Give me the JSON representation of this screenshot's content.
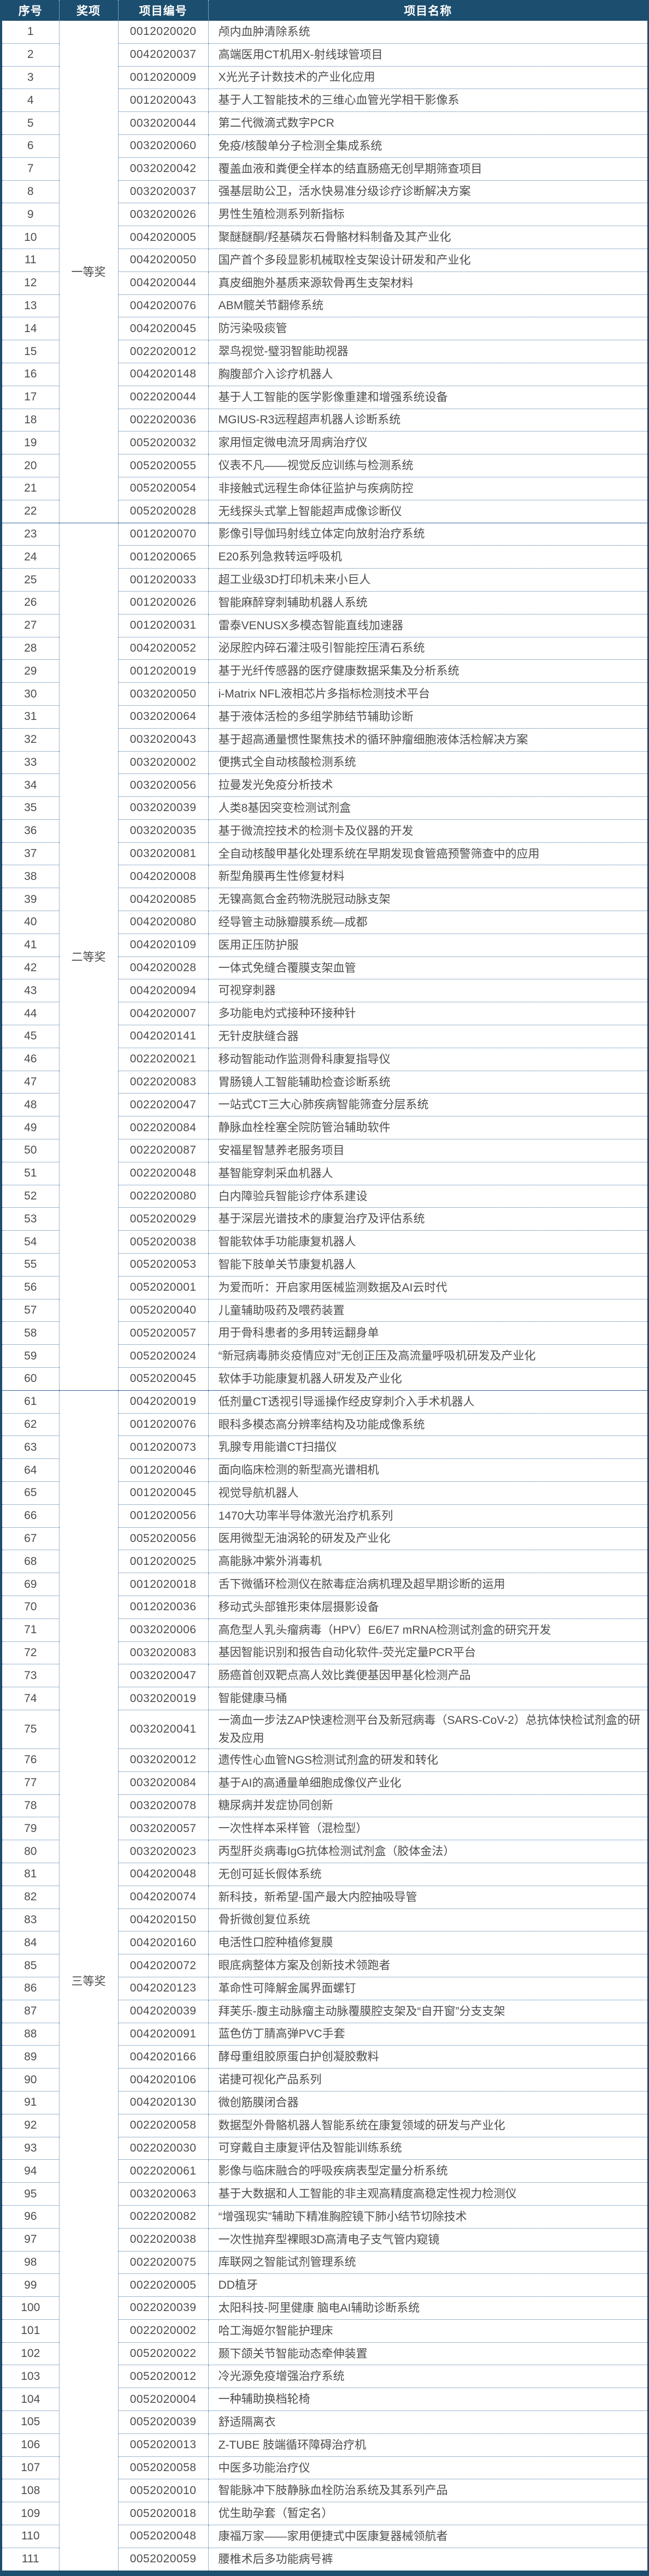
{
  "colors": {
    "header_bg": "#1c4e6f",
    "solid_border": "#1c4e6f",
    "section_line": "#2f6699",
    "dotted_border": "#3a6fa0",
    "body_text": "#4d4d4d",
    "header_text": "#ffffff"
  },
  "table": {
    "columns": [
      "序号",
      "奖项",
      "项目编号",
      "项目名称"
    ],
    "sections": [
      {
        "award": "一等奖",
        "rows": [
          {
            "no": 1,
            "code": "0012020020",
            "name": "颅内血肿清除系统"
          },
          {
            "no": 2,
            "code": "0042020037",
            "name": "高端医用CT机用X-射线球管项目"
          },
          {
            "no": 3,
            "code": "0012020009",
            "name": "X光光子计数技术的产业化应用"
          },
          {
            "no": 4,
            "code": "0012020043",
            "name": "基于人工智能技术的三维心血管光学相干影像系"
          },
          {
            "no": 5,
            "code": "0032020044",
            "name": "第二代微滴式数字PCR"
          },
          {
            "no": 6,
            "code": "0032020060",
            "name": "免疫/核酸单分子检测全集成系统"
          },
          {
            "no": 7,
            "code": "0032020042",
            "name": "覆盖血液和粪便全样本的结直肠癌无创早期筛查项目"
          },
          {
            "no": 8,
            "code": "0032020037",
            "name": "强基层助公卫，活水快易准分级诊疗诊断解决方案"
          },
          {
            "no": 9,
            "code": "0032020026",
            "name": "男性生殖检测系列新指标"
          },
          {
            "no": 10,
            "code": "0042020005",
            "name": "聚醚醚酮/羟基磷灰石骨骼材料制备及其产业化"
          },
          {
            "no": 11,
            "code": "0042020050",
            "name": "国产首个多段显影机械取栓支架设计研发和产业化"
          },
          {
            "no": 12,
            "code": "0042020044",
            "name": "真皮细胞外基质来源软骨再生支架材料"
          },
          {
            "no": 13,
            "code": "0042020076",
            "name": "ABM髋关节翻修系统"
          },
          {
            "no": 14,
            "code": "0042020045",
            "name": "防污染吸痰管"
          },
          {
            "no": 15,
            "code": "0022020012",
            "name": "翠鸟视觉-璧羽智能助视器"
          },
          {
            "no": 16,
            "code": "0042020148",
            "name": "胸腹部介入诊疗机器人"
          },
          {
            "no": 17,
            "code": "0022020044",
            "name": "基于人工智能的医学影像重建和增强系统设备"
          },
          {
            "no": 18,
            "code": "0022020036",
            "name": "MGIUS-R3远程超声机器人诊断系统"
          },
          {
            "no": 19,
            "code": "0052020032",
            "name": "家用恒定微电流牙周病治疗仪"
          },
          {
            "no": 20,
            "code": "0052020055",
            "name": "仪表不凡——视觉反应训练与检测系统"
          },
          {
            "no": 21,
            "code": "0052020054",
            "name": "非接触式远程生命体征监护与疾病防控"
          },
          {
            "no": 22,
            "code": "0052020028",
            "name": "无线探头式掌上智能超声成像诊断仪"
          }
        ]
      },
      {
        "award": "二等奖",
        "rows": [
          {
            "no": 23,
            "code": "0012020070",
            "name": "影像引导伽玛射线立体定向放射治疗系统"
          },
          {
            "no": 24,
            "code": "0012020065",
            "name": "E20系列急救转运呼吸机"
          },
          {
            "no": 25,
            "code": "0012020033",
            "name": "超工业级3D打印机未来小巨人"
          },
          {
            "no": 26,
            "code": "0012020026",
            "name": "智能麻醉穿刺辅助机器人系统"
          },
          {
            "no": 27,
            "code": "0012020031",
            "name": "雷泰VENUSX多模态智能直线加速器"
          },
          {
            "no": 28,
            "code": "0042020052",
            "name": "泌尿腔内碎石灌注吸引智能控压清石系统"
          },
          {
            "no": 29,
            "code": "0012020019",
            "name": "基于光纤传感器的医疗健康数据采集及分析系统"
          },
          {
            "no": 30,
            "code": "0032020050",
            "name": "i-Matrix NFL液相芯片多指标检测技术平台"
          },
          {
            "no": 31,
            "code": "0032020064",
            "name": "基于液体活检的多组学肺结节辅助诊断"
          },
          {
            "no": 32,
            "code": "0032020043",
            "name": "基于超高通量惯性聚焦技术的循环肿瘤细胞液体活检解决方案"
          },
          {
            "no": 33,
            "code": "0032020002",
            "name": "便携式全自动核酸检测系统"
          },
          {
            "no": 34,
            "code": "0032020056",
            "name": "拉曼发光免疫分析技术"
          },
          {
            "no": 35,
            "code": "0032020039",
            "name": "人类8基因突变检测试剂盒"
          },
          {
            "no": 36,
            "code": "0032020035",
            "name": "基于微流控技术的检测卡及仪器的开发"
          },
          {
            "no": 37,
            "code": "0032020081",
            "name": "全自动核酸甲基化处理系统在早期发现食管癌预警筛查中的应用"
          },
          {
            "no": 38,
            "code": "0042020008",
            "name": "新型角膜再生性修复材料"
          },
          {
            "no": 39,
            "code": "0042020085",
            "name": "无镍高氮合金药物洗脱冠动脉支架"
          },
          {
            "no": 40,
            "code": "0042020080",
            "name": "经导管主动脉瓣膜系统—成都"
          },
          {
            "no": 41,
            "code": "0042020109",
            "name": "医用正压防护服"
          },
          {
            "no": 42,
            "code": "0042020028",
            "name": "一体式免缝合覆膜支架血管"
          },
          {
            "no": 43,
            "code": "0042020094",
            "name": "可视穿刺器"
          },
          {
            "no": 44,
            "code": "0042020007",
            "name": "多功能电灼式接种环接种针"
          },
          {
            "no": 45,
            "code": "0042020141",
            "name": "无针皮肤缝合器"
          },
          {
            "no": 46,
            "code": "0022020021",
            "name": "移动智能动作监测骨科康复指导仪"
          },
          {
            "no": 47,
            "code": "0022020083",
            "name": "胃肠镜人工智能辅助检查诊断系统"
          },
          {
            "no": 48,
            "code": "0022020047",
            "name": "一站式CT三大心肺疾病智能筛查分层系统"
          },
          {
            "no": 49,
            "code": "0022020084",
            "name": "静脉血栓栓塞全院防管治辅助软件"
          },
          {
            "no": 50,
            "code": "0022020087",
            "name": "安福星智慧养老服务项目"
          },
          {
            "no": 51,
            "code": "0022020048",
            "name": "基智能穿刺采血机器人"
          },
          {
            "no": 52,
            "code": "0022020080",
            "name": "白内障验兵智能诊疗体系建设"
          },
          {
            "no": 53,
            "code": "0052020029",
            "name": "基于深层光谱技术的康复治疗及评估系统"
          },
          {
            "no": 54,
            "code": "0052020038",
            "name": "智能软体手功能康复机器人"
          },
          {
            "no": 55,
            "code": "0052020053",
            "name": "智能下肢单关节康复机器人"
          },
          {
            "no": 56,
            "code": "0052020001",
            "name": "为爱而听：开启家用医械监测数据及AI云时代"
          },
          {
            "no": 57,
            "code": "0052020040",
            "name": "儿童辅助吸药及喂药装置"
          },
          {
            "no": 58,
            "code": "0052020057",
            "name": "用于骨科患者的多用转运翻身单"
          },
          {
            "no": 59,
            "code": "0052020024",
            "name": "“新冠病毒肺炎疫情应对”无创正压及高流量呼吸机研发及产业化"
          },
          {
            "no": 60,
            "code": "0052020045",
            "name": "软体手功能康复机器人研发及产业化"
          }
        ]
      },
      {
        "award": "三等奖",
        "rows": [
          {
            "no": 61,
            "code": "0042020019",
            "name": "低剂量CT透视引导遥操作经皮穿刺介入手术机器人"
          },
          {
            "no": 62,
            "code": "0012020076",
            "name": "眼科多模态高分辨率结构及功能成像系统"
          },
          {
            "no": 63,
            "code": "0012020073",
            "name": "乳腺专用能谱CT扫描仪"
          },
          {
            "no": 64,
            "code": "0012020046",
            "name": "面向临床检测的新型高光谱相机"
          },
          {
            "no": 65,
            "code": "0012020045",
            "name": "视觉导航机器人"
          },
          {
            "no": 66,
            "code": "0012020056",
            "name": "1470大功率半导体激光治疗机系列"
          },
          {
            "no": 67,
            "code": "0052020056",
            "name": "医用微型无油涡轮的研发及产业化"
          },
          {
            "no": 68,
            "code": "0012020025",
            "name": "高能脉冲紫外消毒机"
          },
          {
            "no": 69,
            "code": "0012020018",
            "name": "舌下微循环检测仪在脓毒症治病机理及超早期诊断的运用"
          },
          {
            "no": 70,
            "code": "0012020036",
            "name": "移动式头部锥形束体层摄影设备"
          },
          {
            "no": 71,
            "code": "0032020006",
            "name": "高危型人乳头瘤病毒（HPV）E6/E7 mRNA检测试剂盒的研究开发"
          },
          {
            "no": 72,
            "code": "0032020083",
            "name": "基因智能识别和报告自动化软件-荧光定量PCR平台"
          },
          {
            "no": 73,
            "code": "0032020047",
            "name": "肠癌首创双靶点高人效比粪便基因甲基化检测产品"
          },
          {
            "no": 74,
            "code": "0032020019",
            "name": "智能健康马桶"
          },
          {
            "no": 75,
            "code": "0032020041",
            "name": "一滴血一步法ZAP快速检测平台及新冠病毒（SARS-CoV-2）总抗体快检试剂盒的研发及应用"
          },
          {
            "no": 76,
            "code": "0032020012",
            "name": "遗传性心血管NGS检测试剂盒的研发和转化"
          },
          {
            "no": 77,
            "code": "0032020084",
            "name": "基于AI的高通量单细胞成像仪产业化"
          },
          {
            "no": 78,
            "code": "0032020078",
            "name": "糖尿病并发症协同创新"
          },
          {
            "no": 79,
            "code": "0032020057",
            "name": "一次性样本采样管（混检型）"
          },
          {
            "no": 80,
            "code": "0032020023",
            "name": "丙型肝炎病毒IgG抗体检测试剂盒（胶体金法）"
          },
          {
            "no": 81,
            "code": "0042020048",
            "name": "无创可延长假体系统"
          },
          {
            "no": 82,
            "code": "0042020074",
            "name": "新科技，新希望-国产最大内腔抽吸导管"
          },
          {
            "no": 83,
            "code": "0042020150",
            "name": "骨折微创复位系统"
          },
          {
            "no": 84,
            "code": "0042020160",
            "name": "电活性口腔种植修复膜"
          },
          {
            "no": 85,
            "code": "0042020072",
            "name": "眼底病整体方案及创新技术领跑者"
          },
          {
            "no": 86,
            "code": "0042020123",
            "name": "革命性可降解金属界面螺钉"
          },
          {
            "no": 87,
            "code": "0042020039",
            "name": "拜芙乐-腹主动脉瘤主动脉覆膜腔支架及“自开窗”分支支架"
          },
          {
            "no": 88,
            "code": "0042020091",
            "name": "蓝色仿丁腈高弹PVC手套"
          },
          {
            "no": 89,
            "code": "0042020166",
            "name": "酵母重组胶原蛋白护创凝胶敷料"
          },
          {
            "no": 90,
            "code": "0042020106",
            "name": "诺捷可视化产品系列"
          },
          {
            "no": 91,
            "code": "0042020130",
            "name": "微创筋膜闭合器"
          },
          {
            "no": 92,
            "code": "0022020058",
            "name": "数据型外骨骼机器人智能系统在康复领域的研发与产业化"
          },
          {
            "no": 93,
            "code": "0022020030",
            "name": "可穿戴自主康复评估及智能训练系统"
          },
          {
            "no": 94,
            "code": "0022020061",
            "name": "影像与临床融合的呼吸疾病表型定量分析系统"
          },
          {
            "no": 95,
            "code": "0032020063",
            "name": "基于大数据和人工智能的非主观高精度高稳定性视力检测仪"
          },
          {
            "no": 96,
            "code": "0022020082",
            "name": "“增强现实”辅助下精准胸腔镜下肺小结节切除技术"
          },
          {
            "no": 97,
            "code": "0022020038",
            "name": "一次性抛弃型裸眼3D高清电子支气管内窥镜"
          },
          {
            "no": 98,
            "code": "0022020075",
            "name": "库联网之智能试剂管理系统"
          },
          {
            "no": 99,
            "code": "0022020005",
            "name": "DD植牙"
          },
          {
            "no": 100,
            "code": "0022020039",
            "name": "太阳科技-阿里健康 脑电AI辅助诊断系统"
          },
          {
            "no": 101,
            "code": "0022020002",
            "name": "哈工海姬尔智能护理床"
          },
          {
            "no": 102,
            "code": "0052020022",
            "name": "颞下颌关节智能动态牵伸装置"
          },
          {
            "no": 103,
            "code": "0052020012",
            "name": "冷光源免疫增强治疗系统"
          },
          {
            "no": 104,
            "code": "0052020004",
            "name": "一种辅助换档轮椅"
          },
          {
            "no": 105,
            "code": "0052020039",
            "name": "舒适隔离衣"
          },
          {
            "no": 106,
            "code": "0052020013",
            "name": "Z-TUBE 肢端循环障碍治疗机"
          },
          {
            "no": 107,
            "code": "0052020058",
            "name": "中医多功能治疗仪"
          },
          {
            "no": 108,
            "code": "0052020010",
            "name": "智能脉冲下肢静脉血栓防治系统及其系列产品"
          },
          {
            "no": 109,
            "code": "0052020018",
            "name": "优生助孕套（暂定名）"
          },
          {
            "no": 110,
            "code": "0052020048",
            "name": "康福万家——家用便捷式中医康复器械领航者"
          },
          {
            "no": 111,
            "code": "0052020059",
            "name": "腰椎术后多功能病号裤"
          }
        ]
      }
    ]
  }
}
